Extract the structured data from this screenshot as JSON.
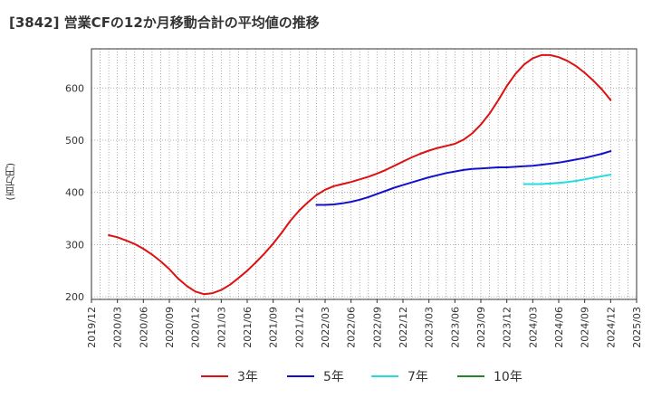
{
  "chart_data": {
    "type": "line",
    "title": "[3842]  営業CFの12か月移動合計の平均値の推移",
    "ylabel": "(百万円)",
    "xlabel": "",
    "ylim": [
      195,
      675
    ],
    "yticks": [
      200,
      300,
      400,
      500,
      600
    ],
    "x_tick_labels": [
      "2019/12",
      "2020/03",
      "2020/06",
      "2020/09",
      "2020/12",
      "2021/03",
      "2021/06",
      "2021/09",
      "2021/12",
      "2022/03",
      "2022/06",
      "2022/09",
      "2022/12",
      "2023/03",
      "2023/06",
      "2023/09",
      "2023/12",
      "2024/03",
      "2024/06",
      "2024/09",
      "2024/12",
      "2025/03"
    ],
    "grid": true,
    "legend_position": "bottom",
    "series": [
      {
        "name": "3年",
        "color": "#dd1111",
        "points": [
          [
            "2020/02",
            318
          ],
          [
            "2020/03",
            314
          ],
          [
            "2020/04",
            308
          ],
          [
            "2020/05",
            301
          ],
          [
            "2020/06",
            292
          ],
          [
            "2020/07",
            281
          ],
          [
            "2020/08",
            268
          ],
          [
            "2020/09",
            253
          ],
          [
            "2020/10",
            235
          ],
          [
            "2020/11",
            221
          ],
          [
            "2020/12",
            210
          ],
          [
            "2021/01",
            205
          ],
          [
            "2021/02",
            207
          ],
          [
            "2021/03",
            213
          ],
          [
            "2021/04",
            223
          ],
          [
            "2021/05",
            236
          ],
          [
            "2021/06",
            250
          ],
          [
            "2021/07",
            266
          ],
          [
            "2021/08",
            283
          ],
          [
            "2021/09",
            302
          ],
          [
            "2021/10",
            323
          ],
          [
            "2021/11",
            346
          ],
          [
            "2021/12",
            365
          ],
          [
            "2022/01",
            381
          ],
          [
            "2022/02",
            395
          ],
          [
            "2022/03",
            405
          ],
          [
            "2022/04",
            412
          ],
          [
            "2022/05",
            416
          ],
          [
            "2022/06",
            420
          ],
          [
            "2022/07",
            425
          ],
          [
            "2022/08",
            430
          ],
          [
            "2022/09",
            436
          ],
          [
            "2022/10",
            443
          ],
          [
            "2022/11",
            451
          ],
          [
            "2022/12",
            459
          ],
          [
            "2023/01",
            467
          ],
          [
            "2023/02",
            474
          ],
          [
            "2023/03",
            480
          ],
          [
            "2023/04",
            485
          ],
          [
            "2023/05",
            489
          ],
          [
            "2023/06",
            493
          ],
          [
            "2023/07",
            501
          ],
          [
            "2023/08",
            513
          ],
          [
            "2023/09",
            530
          ],
          [
            "2023/10",
            551
          ],
          [
            "2023/11",
            576
          ],
          [
            "2023/12",
            604
          ],
          [
            "2024/01",
            627
          ],
          [
            "2024/02",
            645
          ],
          [
            "2024/03",
            657
          ],
          [
            "2024/04",
            663
          ],
          [
            "2024/05",
            663
          ],
          [
            "2024/06",
            659
          ],
          [
            "2024/07",
            652
          ],
          [
            "2024/08",
            642
          ],
          [
            "2024/09",
            629
          ],
          [
            "2024/10",
            614
          ],
          [
            "2024/11",
            597
          ],
          [
            "2024/12",
            577
          ]
        ]
      },
      {
        "name": "5年",
        "color": "#1111cc",
        "points": [
          [
            "2022/02",
            376
          ],
          [
            "2022/03",
            376
          ],
          [
            "2022/04",
            377
          ],
          [
            "2022/05",
            379
          ],
          [
            "2022/06",
            382
          ],
          [
            "2022/07",
            386
          ],
          [
            "2022/08",
            391
          ],
          [
            "2022/09",
            397
          ],
          [
            "2022/10",
            403
          ],
          [
            "2022/11",
            409
          ],
          [
            "2022/12",
            414
          ],
          [
            "2023/01",
            419
          ],
          [
            "2023/02",
            424
          ],
          [
            "2023/03",
            429
          ],
          [
            "2023/04",
            433
          ],
          [
            "2023/05",
            437
          ],
          [
            "2023/06",
            440
          ],
          [
            "2023/07",
            443
          ],
          [
            "2023/08",
            445
          ],
          [
            "2023/09",
            446
          ],
          [
            "2023/10",
            447
          ],
          [
            "2023/11",
            448
          ],
          [
            "2023/12",
            448
          ],
          [
            "2024/01",
            449
          ],
          [
            "2024/02",
            450
          ],
          [
            "2024/03",
            451
          ],
          [
            "2024/04",
            453
          ],
          [
            "2024/05",
            455
          ],
          [
            "2024/06",
            457
          ],
          [
            "2024/07",
            460
          ],
          [
            "2024/08",
            463
          ],
          [
            "2024/09",
            466
          ],
          [
            "2024/10",
            470
          ],
          [
            "2024/11",
            474
          ],
          [
            "2024/12",
            479
          ]
        ]
      },
      {
        "name": "7年",
        "color": "#22dddd",
        "points": [
          [
            "2024/02",
            416
          ],
          [
            "2024/03",
            416
          ],
          [
            "2024/04",
            416
          ],
          [
            "2024/05",
            417
          ],
          [
            "2024/06",
            418
          ],
          [
            "2024/07",
            420
          ],
          [
            "2024/08",
            422
          ],
          [
            "2024/09",
            425
          ],
          [
            "2024/10",
            428
          ],
          [
            "2024/11",
            431
          ],
          [
            "2024/12",
            434
          ]
        ]
      },
      {
        "name": "10年",
        "color": "#228822",
        "points": []
      }
    ]
  }
}
